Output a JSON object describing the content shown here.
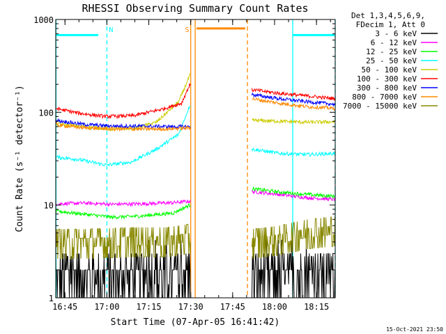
{
  "chart_data": {
    "type": "line",
    "title": "RHESSI Observing Summary Count Rates",
    "xlabel": "Start Time (07-Apr-05 16:41:42)",
    "ylabel": "Count Rate (s⁻¹ detector⁻¹)",
    "xlim_min": [
      0,
      100
    ],
    "ylim": [
      1,
      1000
    ],
    "yscale": "log",
    "x_ticks": [
      {
        "min": 3.3,
        "label": "16:45"
      },
      {
        "min": 18.3,
        "label": "17:00"
      },
      {
        "min": 33.3,
        "label": "17:15"
      },
      {
        "min": 48.3,
        "label": "17:30"
      },
      {
        "min": 63.3,
        "label": "17:45"
      },
      {
        "min": 78.3,
        "label": "18:00"
      },
      {
        "min": 93.3,
        "label": "18:15"
      }
    ],
    "y_ticks": [
      {
        "value": 1,
        "label": "1"
      },
      {
        "value": 10,
        "label": "10"
      },
      {
        "value": 100,
        "label": "100"
      },
      {
        "value": 1000,
        "label": "1000"
      }
    ],
    "legend": {
      "header_lines": [
        "Det 1,3,4,5,6,9,",
        "FDecim 1, Att 0"
      ],
      "entries": [
        {
          "label": "3 - 6 keV",
          "color": "#000000"
        },
        {
          "label": "6 - 12 keV",
          "color": "#ff00ff"
        },
        {
          "label": "12 - 25 keV",
          "color": "#00ff00"
        },
        {
          "label": "25 - 50 keV",
          "color": "#00ffff"
        },
        {
          "label": "50 - 100 keV",
          "color": "#cccc00"
        },
        {
          "label": "100 - 300 keV",
          "color": "#ff0000"
        },
        {
          "label": "300 - 800 keV",
          "color": "#0000ff"
        },
        {
          "label": "800 - 7000 keV",
          "color": "#ff8800"
        },
        {
          "label": "7000 - 15000 keV",
          "color": "#888800"
        }
      ]
    },
    "segments": [
      {
        "start": 0,
        "end": 48.3
      },
      {
        "start": 70.2,
        "end": 100
      }
    ],
    "series": [
      {
        "name": "3 - 6 keV",
        "color": "#000000",
        "noise": "heavy",
        "points_a": [
          [
            0,
            1.5
          ],
          [
            10,
            1.5
          ],
          [
            20,
            1.5
          ],
          [
            30,
            1.6
          ],
          [
            48,
            1.7
          ]
        ],
        "points_b": [
          [
            70.2,
            1.6
          ],
          [
            80,
            1.6
          ],
          [
            100,
            1.7
          ]
        ]
      },
      {
        "name": "6 - 12 keV",
        "color": "#ff00ff",
        "points_a": [
          [
            0,
            10.3
          ],
          [
            10,
            10.5
          ],
          [
            20,
            10.2
          ],
          [
            30,
            10.3
          ],
          [
            42,
            10.6
          ],
          [
            48,
            11
          ]
        ],
        "points_b": [
          [
            70.2,
            14
          ],
          [
            80,
            13
          ],
          [
            90,
            12
          ],
          [
            100,
            11.5
          ]
        ]
      },
      {
        "name": "12 - 25 keV",
        "color": "#00ff00",
        "points_a": [
          [
            0,
            8.6
          ],
          [
            10,
            8
          ],
          [
            20,
            7.4
          ],
          [
            30,
            7.6
          ],
          [
            42,
            8.2
          ],
          [
            48,
            10
          ]
        ],
        "points_b": [
          [
            70.2,
            15
          ],
          [
            80,
            13.8
          ],
          [
            90,
            13
          ],
          [
            100,
            12.4
          ]
        ]
      },
      {
        "name": "25 - 50 keV",
        "color": "#00ffff",
        "points_a": [
          [
            0,
            33
          ],
          [
            8,
            31
          ],
          [
            18,
            27
          ],
          [
            27,
            29
          ],
          [
            36,
            40
          ],
          [
            44,
            58
          ],
          [
            48,
            120
          ]
        ],
        "points_b": [
          [
            70.2,
            40
          ],
          [
            80,
            36
          ],
          [
            90,
            35
          ],
          [
            100,
            36
          ]
        ]
      },
      {
        "name": "50 - 100 keV",
        "color": "#cccc00",
        "points_a": [
          [
            0,
            75
          ],
          [
            10,
            70
          ],
          [
            20,
            66
          ],
          [
            28,
            67
          ],
          [
            36,
            78
          ],
          [
            44,
            130
          ],
          [
            48,
            250
          ]
        ],
        "points_b": [
          [
            70.2,
            82
          ],
          [
            80,
            80
          ],
          [
            90,
            78
          ],
          [
            100,
            79
          ]
        ]
      },
      {
        "name": "100 - 300 keV",
        "color": "#ff0000",
        "points_a": [
          [
            0,
            110
          ],
          [
            8,
            98
          ],
          [
            18,
            90
          ],
          [
            28,
            92
          ],
          [
            38,
            108
          ],
          [
            45,
            125
          ],
          [
            48,
            200
          ]
        ],
        "points_b": [
          [
            70.2,
            175
          ],
          [
            80,
            160
          ],
          [
            90,
            150
          ],
          [
            100,
            140
          ]
        ]
      },
      {
        "name": "300 - 800 keV",
        "color": "#0000ff",
        "points_a": [
          [
            0,
            82
          ],
          [
            10,
            74
          ],
          [
            20,
            71
          ],
          [
            30,
            71
          ],
          [
            40,
            70
          ],
          [
            48,
            70
          ]
        ],
        "points_b": [
          [
            70.2,
            155
          ],
          [
            80,
            140
          ],
          [
            90,
            130
          ],
          [
            100,
            122
          ]
        ]
      },
      {
        "name": "800 - 7000 keV",
        "color": "#ff8800",
        "points_a": [
          [
            0,
            73
          ],
          [
            10,
            68
          ],
          [
            20,
            66
          ],
          [
            30,
            66
          ],
          [
            40,
            66
          ],
          [
            48,
            68
          ]
        ],
        "points_b": [
          [
            70.2,
            140
          ],
          [
            80,
            125
          ],
          [
            90,
            115
          ],
          [
            100,
            110
          ]
        ]
      },
      {
        "name": "7000 - 15000 keV",
        "color": "#888800",
        "noise": "steps",
        "points_a": [
          [
            0,
            4.4
          ],
          [
            10,
            4.4
          ],
          [
            20,
            4.5
          ],
          [
            30,
            4.6
          ],
          [
            40,
            4.6
          ],
          [
            48,
            5
          ]
        ],
        "points_b": [
          [
            70.2,
            4.4
          ],
          [
            80,
            4.8
          ],
          [
            90,
            5.6
          ],
          [
            100,
            6
          ]
        ]
      }
    ],
    "annotations": [
      {
        "label": "N",
        "color": "#00ffff",
        "x_min": 18.3,
        "line": "dashed"
      },
      {
        "label": "S",
        "color": "#ff8800",
        "x_min": 49.0,
        "line": "solid"
      }
    ],
    "vertical_lines": [
      {
        "x_min": 0.1,
        "color": "#00ffff",
        "style": "solid"
      },
      {
        "x_min": 18.3,
        "color": "#00ffff",
        "style": "dashed"
      },
      {
        "x_min": 48.3,
        "color": "#ff8800",
        "style": "solid"
      },
      {
        "x_min": 49.9,
        "color": "#ff8800",
        "style": "solid"
      },
      {
        "x_min": 68.6,
        "color": "#ff8800",
        "style": "dashed"
      },
      {
        "x_min": 84.8,
        "color": "#00ffff",
        "style": "solid"
      },
      {
        "x_min": 100,
        "color": "#00ffff",
        "style": "dashed"
      }
    ],
    "interval_bars": [
      {
        "color": "#00ffff",
        "x_start": 0.3,
        "x_end": 15.2,
        "y": 680
      },
      {
        "color": "#ff8800",
        "x_start": 50.4,
        "x_end": 67.8,
        "y": 800
      },
      {
        "color": "#00ffff",
        "x_start": 84.8,
        "x_end": 99.8,
        "y": 680
      }
    ]
  },
  "footer": {
    "timestamp": "15-Oct-2021 23:50"
  }
}
